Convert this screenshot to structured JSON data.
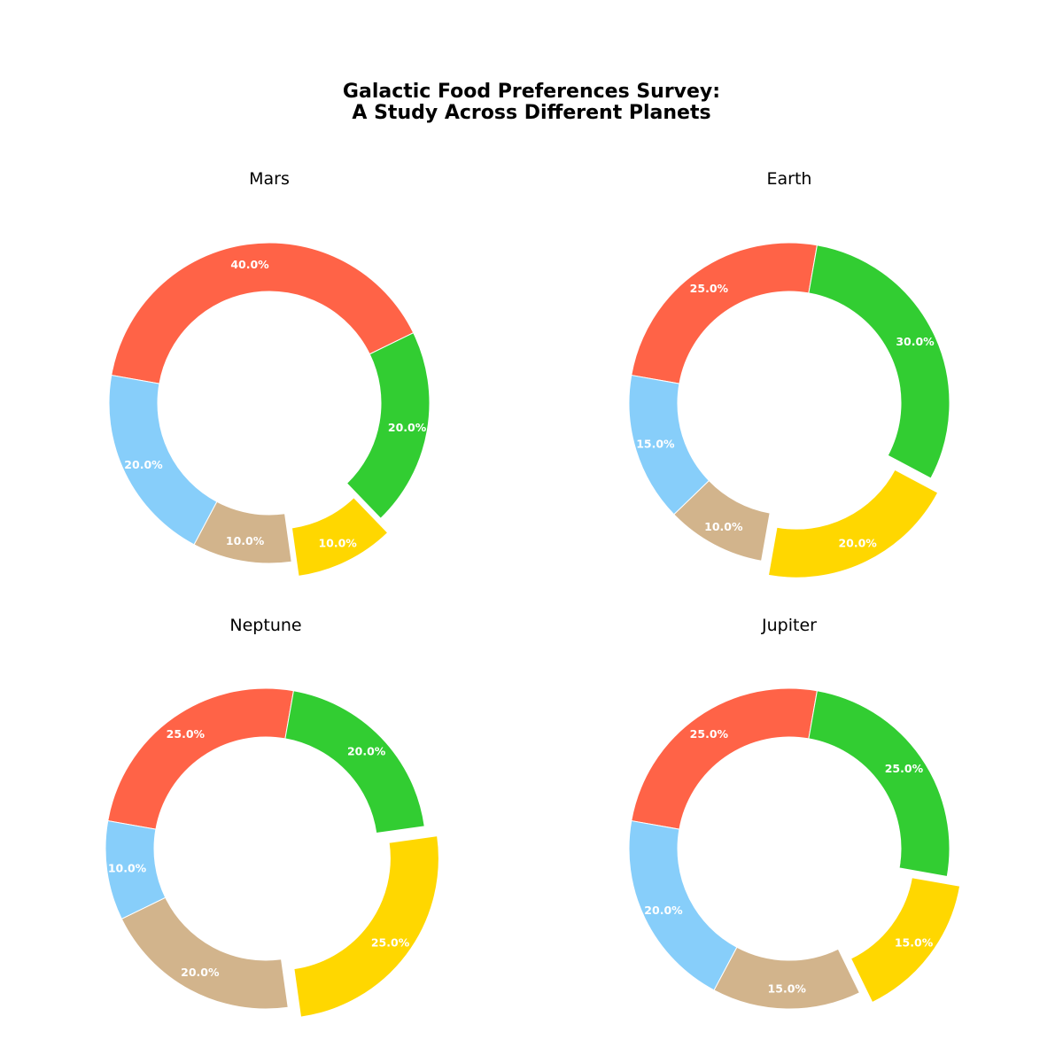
{
  "title_line1": "Galactic Food Preferences Survey:",
  "title_line2": "A Study Across Different Planets",
  "colors": {
    "wedge_1": "#FF6347",
    "wedge_2": "#32CD32",
    "wedge_3": "#FFD700",
    "wedge_4": "#D2B48C",
    "wedge_5": "#87CEFA"
  },
  "chart_data": [
    {
      "type": "pie",
      "title": "Mars",
      "style": "donut",
      "values": [
        40,
        20,
        10,
        10,
        20
      ],
      "labels": [
        "40.0%",
        "20.0%",
        "10.0%",
        "10.0%",
        "20.0%"
      ],
      "colors": [
        "#FF6347",
        "#32CD32",
        "#FFD700",
        "#D2B48C",
        "#87CEFA"
      ],
      "exploded_index": 2
    },
    {
      "type": "pie",
      "title": "Earth",
      "style": "donut",
      "values": [
        25,
        30,
        20,
        10,
        15
      ],
      "labels": [
        "25.0%",
        "30.0%",
        "20.0%",
        "10.0%",
        "15.0%"
      ],
      "colors": [
        "#FF6347",
        "#32CD32",
        "#FFD700",
        "#D2B48C",
        "#87CEFA"
      ],
      "exploded_index": 2
    },
    {
      "type": "pie",
      "title": "Neptune",
      "style": "donut",
      "values": [
        25,
        20,
        25,
        20,
        10
      ],
      "labels": [
        "25.0%",
        "20.0%",
        "25.0%",
        "20.0%",
        "10.0%"
      ],
      "colors": [
        "#FF6347",
        "#32CD32",
        "#FFD700",
        "#D2B48C",
        "#87CEFA"
      ],
      "exploded_index": 2
    },
    {
      "type": "pie",
      "title": "Jupiter",
      "style": "donut",
      "values": [
        25,
        25,
        15,
        15,
        20
      ],
      "labels": [
        "25.0%",
        "25.0%",
        "15.0%",
        "15.0%",
        "20.0%"
      ],
      "colors": [
        "#FF6347",
        "#32CD32",
        "#FFD700",
        "#D2B48C",
        "#87CEFA"
      ],
      "exploded_index": 2
    }
  ]
}
